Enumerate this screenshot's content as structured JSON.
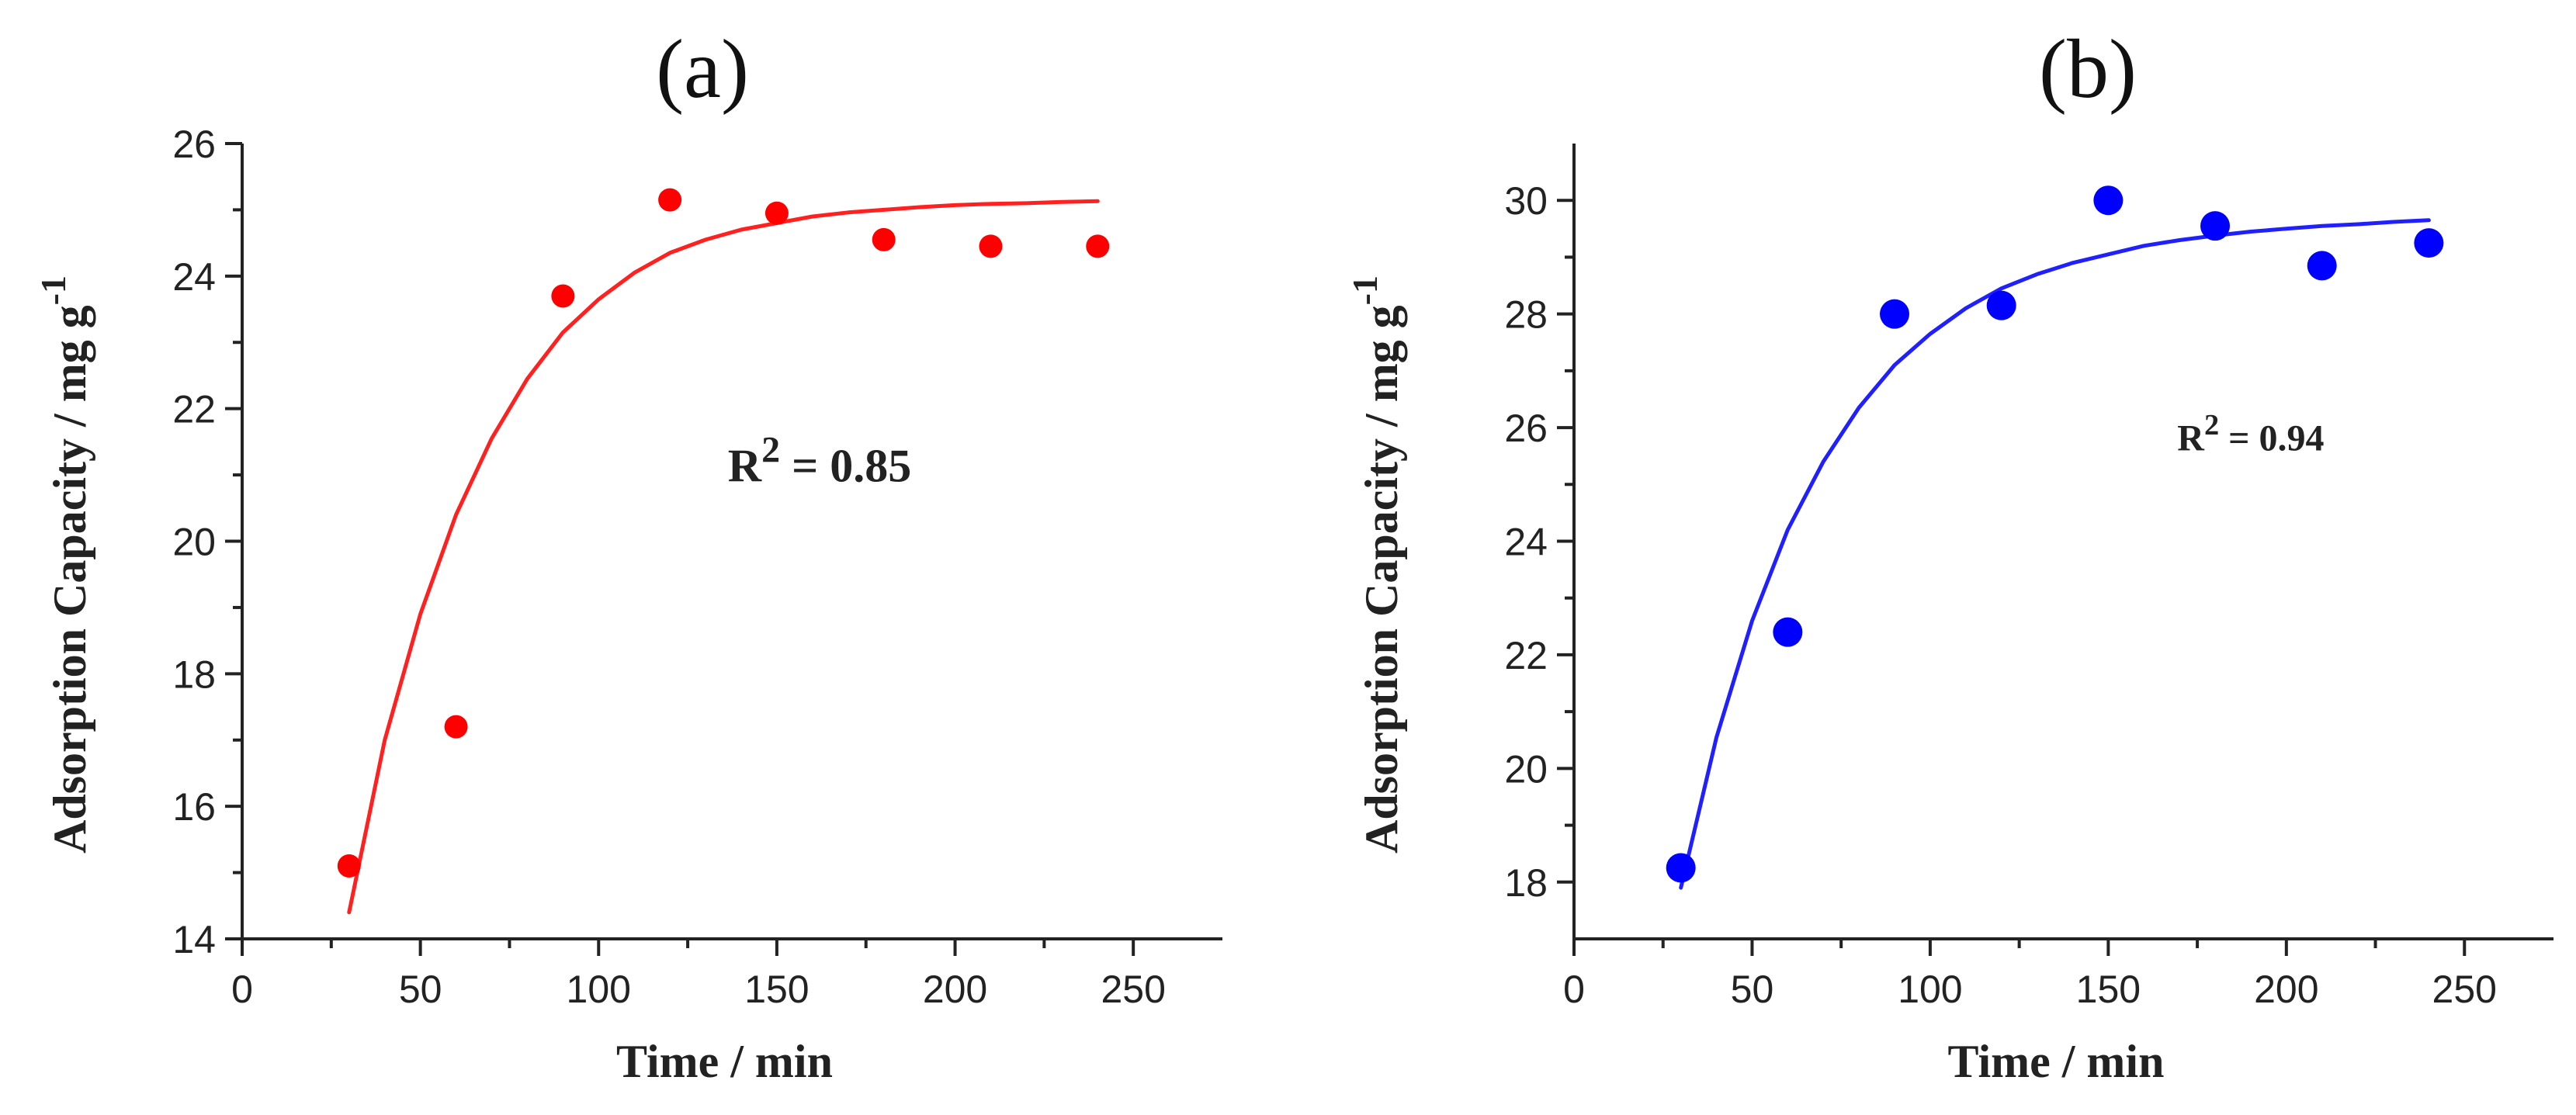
{
  "chart_data": [
    {
      "type": "scatter",
      "panel_label": "(a)",
      "xlabel": "Time / min",
      "ylabel": "Adsorption Capacity / mg g",
      "ylabel_sup": "-1",
      "xlim": [
        0,
        275
      ],
      "ylim": [
        14,
        26
      ],
      "xticks": [
        0,
        50,
        100,
        150,
        200,
        250
      ],
      "yticks": [
        14,
        16,
        18,
        20,
        22,
        24,
        26
      ],
      "series": [
        {
          "name": "data",
          "color": "#ff0000",
          "x": [
            30,
            60,
            90,
            120,
            150,
            180,
            210,
            240
          ],
          "y": [
            15.1,
            17.2,
            23.7,
            25.15,
            24.95,
            24.55,
            24.45,
            24.45
          ]
        }
      ],
      "fit": {
        "color": "#ff2020",
        "x": [
          30,
          40,
          50,
          60,
          70,
          80,
          90,
          100,
          110,
          120,
          130,
          140,
          150,
          160,
          170,
          180,
          190,
          200,
          210,
          220,
          230,
          240
        ],
        "y": [
          14.4,
          17.0,
          18.9,
          20.4,
          21.55,
          22.45,
          23.15,
          23.65,
          24.05,
          24.35,
          24.55,
          24.7,
          24.8,
          24.9,
          24.96,
          25.0,
          25.04,
          25.07,
          25.09,
          25.1,
          25.12,
          25.13
        ]
      },
      "annotation": {
        "text": "R",
        "sup": "2",
        "rest": " = 0.85",
        "x": 162,
        "y": 20.9
      }
    },
    {
      "type": "scatter",
      "panel_label": "(b)",
      "xlabel": "Time / min",
      "ylabel": "Adsorption Capacity / mg g",
      "ylabel_sup": "-1",
      "xlim": [
        0,
        275
      ],
      "ylim": [
        17,
        31
      ],
      "xticks": [
        0,
        50,
        100,
        150,
        200,
        250
      ],
      "yticks": [
        18,
        20,
        22,
        24,
        26,
        28,
        30
      ],
      "series": [
        {
          "name": "data",
          "color": "#0000ff",
          "x": [
            30,
            60,
            90,
            120,
            150,
            180,
            210,
            240
          ],
          "y": [
            18.25,
            22.4,
            28.0,
            28.15,
            30.0,
            29.55,
            28.85,
            29.25
          ]
        }
      ],
      "fit": {
        "color": "#2020ff",
        "x": [
          30,
          40,
          50,
          60,
          70,
          80,
          90,
          100,
          110,
          120,
          130,
          140,
          150,
          160,
          170,
          180,
          190,
          200,
          210,
          220,
          230,
          240
        ],
        "y": [
          17.9,
          20.55,
          22.6,
          24.2,
          25.4,
          26.35,
          27.1,
          27.65,
          28.1,
          28.45,
          28.7,
          28.9,
          29.05,
          29.2,
          29.3,
          29.38,
          29.45,
          29.5,
          29.55,
          29.58,
          29.62,
          29.65
        ]
      },
      "annotation": {
        "text": "R",
        "sup": "2",
        "rest": " = 0.94",
        "x": 190,
        "y": 25.6
      }
    }
  ]
}
